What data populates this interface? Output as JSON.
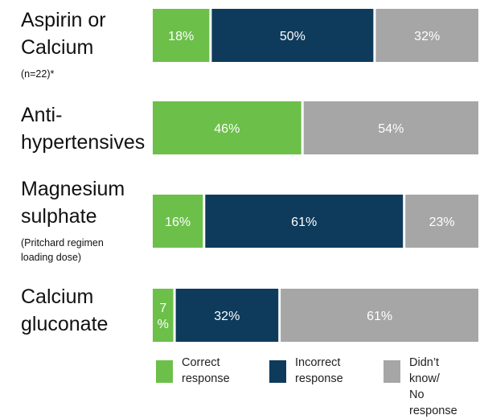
{
  "chart_data": {
    "type": "bar",
    "stacked": true,
    "orientation": "horizontal",
    "categories": [
      {
        "label": "Aspirin or\nCalcium",
        "note": "(n=22)*"
      },
      {
        "label": "Anti-\nhypertensives",
        "note": ""
      },
      {
        "label": "Magnesium\nsulphate",
        "note": "(Pritchard regimen\nloading dose)"
      },
      {
        "label": "Calcium\ngluconate",
        "note": ""
      }
    ],
    "series": [
      {
        "name": "Correct\nresponse",
        "color": "#6cc04a",
        "values": [
          18,
          46,
          16,
          7
        ],
        "labels": [
          "18%",
          "46%",
          "16%",
          "7\n%"
        ]
      },
      {
        "name": "Incorrect\nresponse",
        "color": "#0e3b5c",
        "values": [
          50,
          0,
          61,
          32
        ],
        "labels": [
          "50%",
          "",
          "61%",
          "32%"
        ]
      },
      {
        "name": "Didn’t know/\nNo response",
        "color": "#a6a6a6",
        "values": [
          32,
          54,
          23,
          61
        ],
        "labels": [
          "32%",
          "54%",
          "23%",
          "61%"
        ]
      }
    ],
    "xlim": [
      0,
      100
    ],
    "legend_position": "bottom",
    "grid": false
  }
}
